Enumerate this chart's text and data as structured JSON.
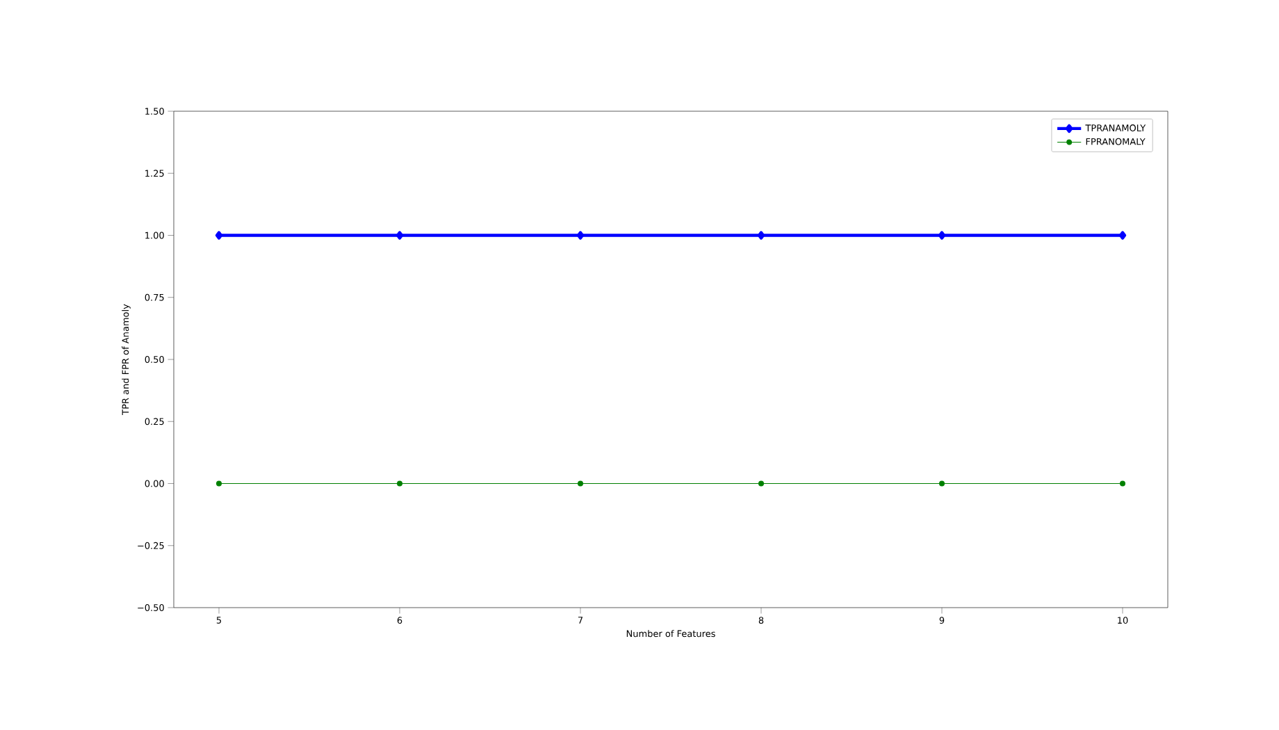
{
  "chart_data": {
    "type": "line",
    "xlabel": "Number of Features",
    "ylabel": "TPR and FPR  of Anamoly",
    "x": [
      5,
      6,
      7,
      8,
      9,
      10
    ],
    "series": [
      {
        "name": "TPRANAMOLY",
        "color": "#0000ff",
        "values": [
          1,
          1,
          1,
          1,
          1,
          1
        ],
        "marker": "diamond"
      },
      {
        "name": "FPRANOMALY",
        "color": "#008000",
        "values": [
          0,
          0,
          0,
          0,
          0,
          0
        ],
        "marker": "circle"
      }
    ],
    "xlim": [
      4.75,
      10.25
    ],
    "ylim": [
      -0.5,
      1.5
    ],
    "xticks": [
      5,
      6,
      7,
      8,
      9,
      10
    ],
    "yticks": [
      {
        "value": -0.5,
        "label": "−0.50"
      },
      {
        "value": -0.25,
        "label": "−0.25"
      },
      {
        "value": 0,
        "label": "0.00"
      },
      {
        "value": 0.25,
        "label": "0.25"
      },
      {
        "value": 0.5,
        "label": "0.50"
      },
      {
        "value": 0.75,
        "label": "0.75"
      },
      {
        "value": 1,
        "label": "1.00"
      },
      {
        "value": 1.25,
        "label": "1.25"
      },
      {
        "value": 1.5,
        "label": "1.50"
      }
    ],
    "legend": "top right",
    "grid": false,
    "line_style": "solid"
  }
}
